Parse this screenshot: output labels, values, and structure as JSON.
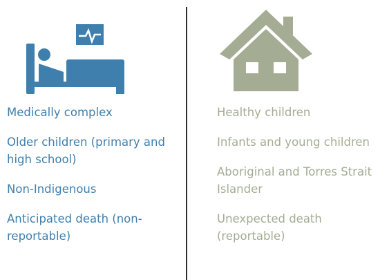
{
  "left": {
    "items": [
      "Medically complex",
      "Older children (primary and high school)",
      "Non-Indigenous",
      "Anticipated death (non-reportable)"
    ]
  },
  "right": {
    "items": [
      "Healthy children",
      "Infants and young children",
      "Aboriginal and Torres Strait Islander",
      "Unexpected death (reportable)"
    ]
  }
}
